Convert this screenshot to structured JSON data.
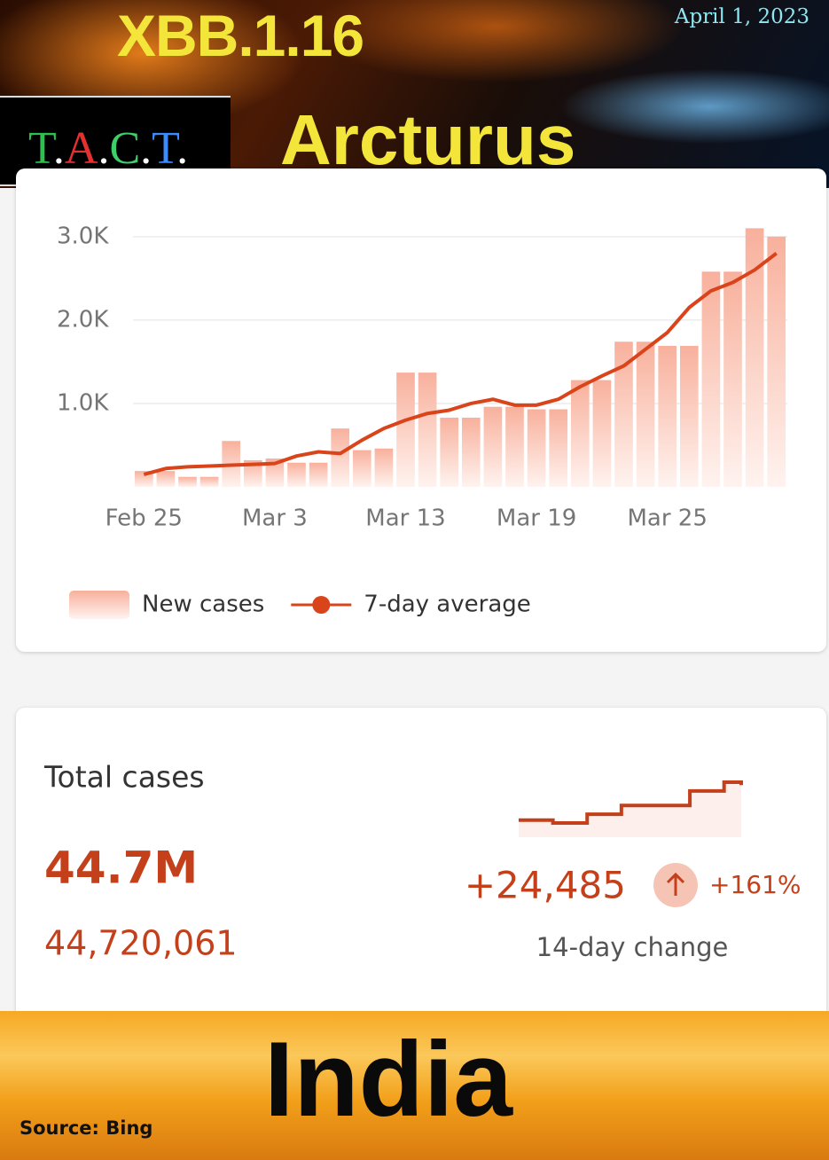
{
  "header": {
    "title": "XBB.1.16",
    "date": "April 1, 2023",
    "brand": "T.A.C.T.",
    "subtitle": "Arcturus"
  },
  "chart_data": {
    "type": "bar",
    "categories": [
      "Feb 25",
      null,
      null,
      null,
      null,
      null,
      "Mar 3",
      null,
      null,
      null,
      null,
      null,
      "Mar 13",
      null,
      null,
      null,
      null,
      null,
      "Mar 19",
      null,
      null,
      null,
      null,
      null,
      "Mar 25",
      null,
      null,
      null,
      null,
      null
    ],
    "series": [
      {
        "name": "New cases",
        "type": "bar",
        "color": "#f8b09c",
        "values": [
          190,
          190,
          120,
          120,
          550,
          320,
          340,
          290,
          290,
          700,
          440,
          460,
          1370,
          1370,
          830,
          830,
          960,
          960,
          930,
          930,
          1280,
          1280,
          1740,
          1740,
          1690,
          1690,
          2580,
          2580,
          3100,
          3000
        ]
      },
      {
        "name": "7-day average",
        "type": "line",
        "color": "#d9441a",
        "values": [
          150,
          220,
          240,
          250,
          260,
          270,
          280,
          370,
          420,
          400,
          560,
          700,
          800,
          880,
          920,
          1000,
          1050,
          980,
          980,
          1050,
          1200,
          1330,
          1450,
          1650,
          1850,
          2150,
          2350,
          2450,
          2600,
          2800
        ]
      }
    ],
    "ylim": [
      0,
      3200
    ],
    "yticks": [
      {
        "value": 1000,
        "label": "1.0K"
      },
      {
        "value": 2000,
        "label": "2.0K"
      },
      {
        "value": 3000,
        "label": "3.0K"
      }
    ],
    "grid": true,
    "legend": "bottom"
  },
  "stats": {
    "label": "Total cases",
    "total_short": "44.7M",
    "total": "44,720,061",
    "change": "+24,485",
    "change_pct": "+161%",
    "change_label": "14-day change",
    "trend": [
      24,
      24,
      23,
      23,
      26,
      26,
      29,
      29,
      29,
      29,
      34,
      34,
      37,
      36
    ]
  },
  "footer": {
    "title": "India",
    "source": "Source: Bing"
  }
}
